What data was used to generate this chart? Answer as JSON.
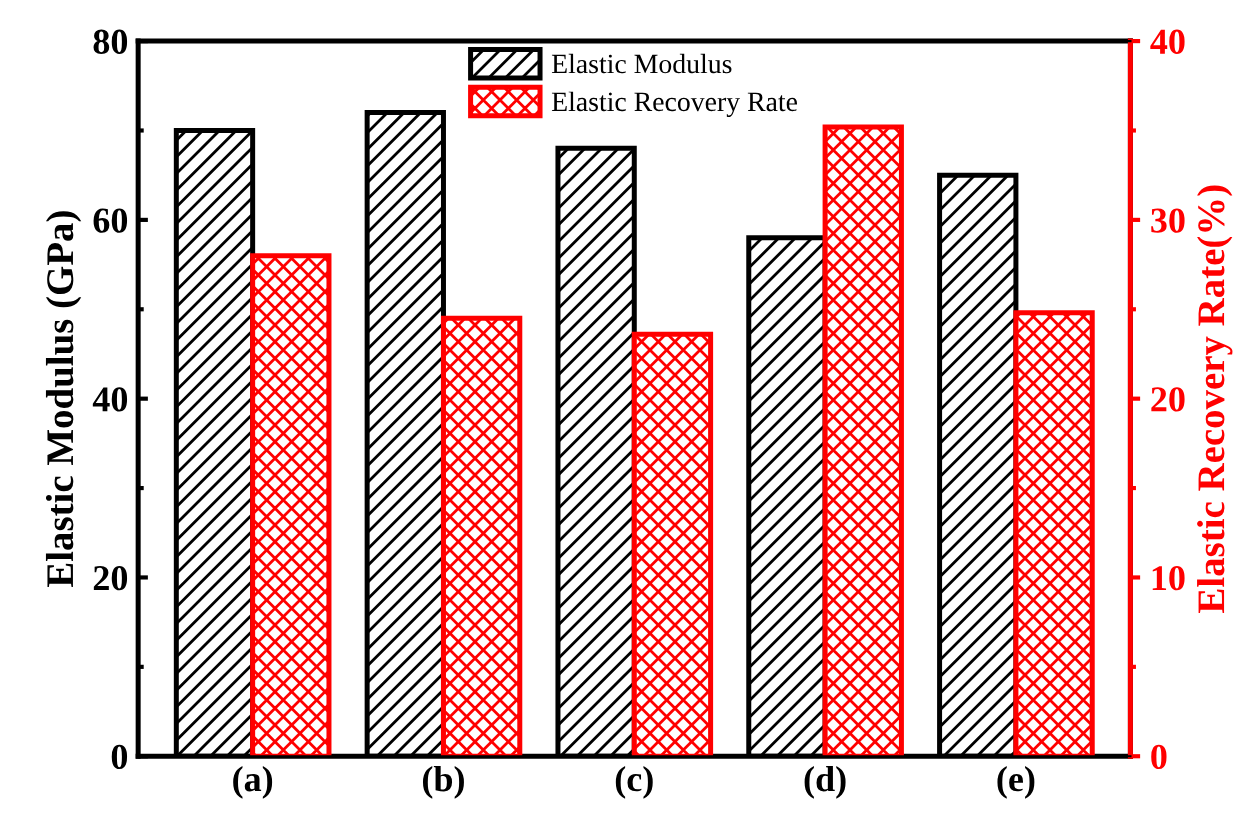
{
  "chart_data": {
    "type": "bar",
    "categories": [
      "(a)",
      "(b)",
      "(c)",
      "(d)",
      "(e)"
    ],
    "ylabel": "Elastic Modulus (GPa)",
    "y2label": "Elastic Recovery Rate(%)",
    "series": [
      {
        "name": "Elastic Modulus",
        "color": "#000000",
        "values": [
          70,
          72,
          68,
          58,
          65
        ]
      },
      {
        "name": "Elastic Recovery Rate",
        "color": "#ff0000",
        "axis": "y2",
        "values": [
          28.0,
          24.5,
          23.6,
          35.2,
          24.8
        ]
      }
    ],
    "ylim": [
      0,
      80
    ],
    "yticks": [
      0,
      20,
      40,
      60,
      80
    ],
    "y2lim": [
      0,
      40
    ],
    "y2ticks": [
      0,
      10,
      20,
      30,
      40
    ],
    "grid": false,
    "legend": "top"
  }
}
